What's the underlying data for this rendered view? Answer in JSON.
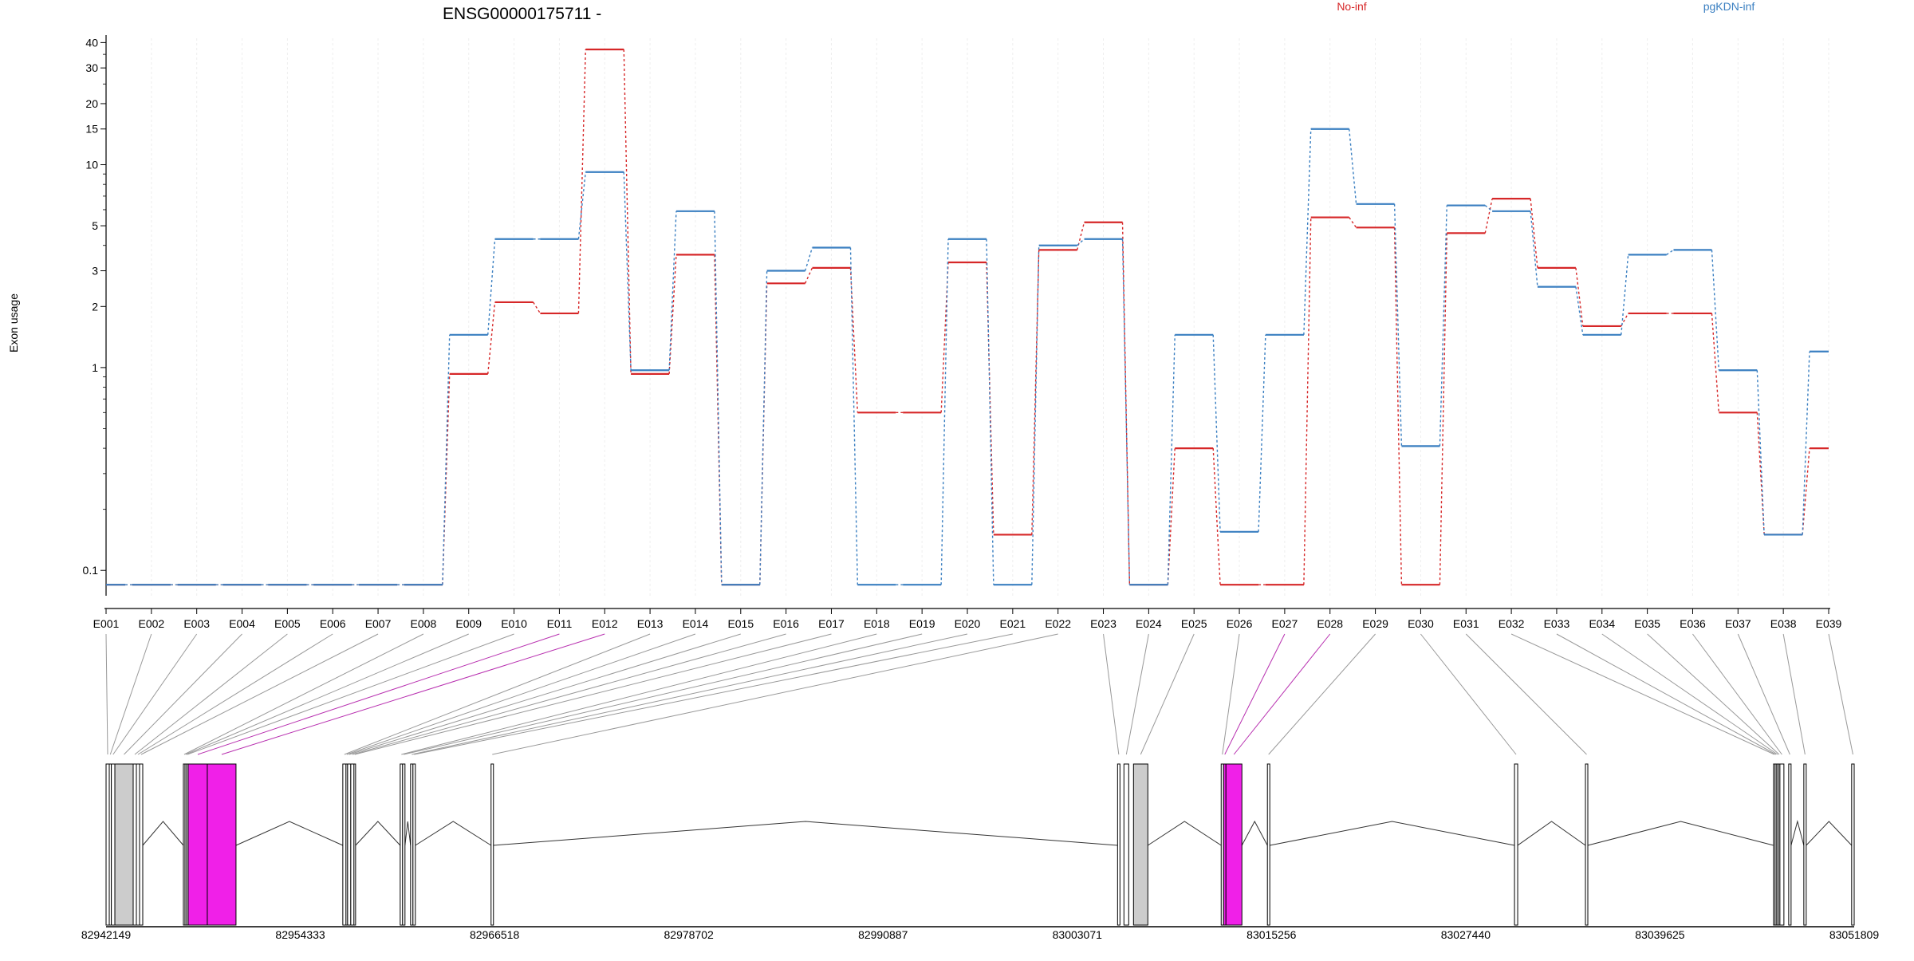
{
  "chart_data": {
    "type": "line",
    "title": "ENSG00000175711 -",
    "ylabel": "Exon usage",
    "xlabel": "",
    "yscale": "log",
    "ylim": [
      0.075,
      42
    ],
    "yticks": [
      0.1,
      1,
      2,
      3,
      5,
      10,
      15,
      20,
      30,
      40
    ],
    "grid": true,
    "legend_placement": "top",
    "categories": [
      "E001",
      "E002",
      "E003",
      "E004",
      "E005",
      "E006",
      "E007",
      "E008",
      "E009",
      "E010",
      "E011",
      "E012",
      "E013",
      "E014",
      "E015",
      "E016",
      "E017",
      "E018",
      "E019",
      "E020",
      "E021",
      "E022",
      "E023",
      "E024",
      "E025",
      "E026",
      "E027",
      "E028",
      "E029",
      "E030",
      "E031",
      "E032",
      "E033",
      "E034",
      "E035",
      "E036",
      "E037",
      "E038",
      "E039"
    ],
    "series": [
      {
        "name": "No-inf",
        "color": "#d62728",
        "values": [
          0.085,
          0.085,
          0.085,
          0.085,
          0.085,
          0.085,
          0.085,
          0.085,
          0.93,
          2.1,
          1.85,
          37,
          0.93,
          3.6,
          0.085,
          2.6,
          3.1,
          0.6,
          0.6,
          3.3,
          0.15,
          3.8,
          5.2,
          0.085,
          0.4,
          0.085,
          0.085,
          5.5,
          4.9,
          0.085,
          4.6,
          6.8,
          3.1,
          1.6,
          1.85,
          1.85,
          0.6,
          0.15,
          0.4
        ]
      },
      {
        "name": "pgKDN-inf",
        "color": "#3a7fc1",
        "values": [
          0.085,
          0.085,
          0.085,
          0.085,
          0.085,
          0.085,
          0.085,
          0.085,
          1.45,
          4.3,
          4.3,
          9.2,
          0.97,
          5.9,
          0.085,
          3.0,
          3.9,
          0.085,
          0.085,
          4.3,
          0.085,
          4.0,
          4.3,
          0.085,
          1.45,
          0.155,
          1.45,
          15,
          6.4,
          0.41,
          6.3,
          5.9,
          2.5,
          1.45,
          3.6,
          3.8,
          0.97,
          0.15,
          1.2
        ]
      }
    ],
    "gene_model": {
      "genomic_range": [
        82942149,
        83051809
      ],
      "coordinate_labels": [
        "82942149",
        "82954333",
        "82966518",
        "82978702",
        "82990887",
        "83003071",
        "83015256",
        "83027440",
        "83039625",
        "83051809"
      ],
      "highlight_color": "#f020e8",
      "exons": [
        {
          "id": "E001",
          "start": 82942149,
          "end": 82942350,
          "highlight": false
        },
        {
          "id": "E002",
          "start": 82942350,
          "end": 82942480,
          "highlight": false
        },
        {
          "id": "E003",
          "start": 82942480,
          "end": 82942700,
          "highlight": false
        },
        {
          "id": "E004",
          "start": 82942700,
          "end": 82943850,
          "highlight": false
        },
        {
          "id": "E005",
          "start": 82943850,
          "end": 82944050,
          "highlight": false
        },
        {
          "id": "E006",
          "start": 82944050,
          "end": 82944250,
          "highlight": false
        },
        {
          "id": "E007",
          "start": 82944250,
          "end": 82944450,
          "highlight": false
        },
        {
          "id": "E008",
          "start": 82947000,
          "end": 82947100,
          "highlight": false
        },
        {
          "id": "E009",
          "start": 82947100,
          "end": 82947200,
          "highlight": false
        },
        {
          "id": "E010",
          "start": 82947200,
          "end": 82947300,
          "highlight": false
        },
        {
          "id": "E011",
          "start": 82947300,
          "end": 82948500,
          "highlight": true
        },
        {
          "id": "E012",
          "start": 82948500,
          "end": 82950300,
          "highlight": true
        },
        {
          "id": "E013",
          "start": 82957000,
          "end": 82957200,
          "highlight": false
        },
        {
          "id": "E014",
          "start": 82957200,
          "end": 82957300,
          "highlight": false
        },
        {
          "id": "E015",
          "start": 82957300,
          "end": 82957500,
          "highlight": false
        },
        {
          "id": "E016",
          "start": 82957500,
          "end": 82957700,
          "highlight": false
        },
        {
          "id": "E017",
          "start": 82957700,
          "end": 82957800,
          "highlight": false
        },
        {
          "id": "E018",
          "start": 82960600,
          "end": 82960750,
          "highlight": false
        },
        {
          "id": "E019",
          "start": 82960750,
          "end": 82960900,
          "highlight": false
        },
        {
          "id": "E020",
          "start": 82961250,
          "end": 82961400,
          "highlight": false
        },
        {
          "id": "E021",
          "start": 82961400,
          "end": 82961550,
          "highlight": false
        },
        {
          "id": "E022",
          "start": 82966300,
          "end": 82966450,
          "highlight": false
        },
        {
          "id": "E023",
          "start": 83005600,
          "end": 83005750,
          "highlight": false
        },
        {
          "id": "E024",
          "start": 83006000,
          "end": 83006300,
          "highlight": false
        },
        {
          "id": "E025",
          "start": 83006600,
          "end": 83007500,
          "highlight": false
        },
        {
          "id": "E026",
          "start": 83012100,
          "end": 83012250,
          "highlight": false
        },
        {
          "id": "E027",
          "start": 83012250,
          "end": 83012400,
          "highlight": true
        },
        {
          "id": "E028",
          "start": 83012400,
          "end": 83013400,
          "highlight": true
        },
        {
          "id": "E029",
          "start": 83015000,
          "end": 83015150,
          "highlight": false
        },
        {
          "id": "E030",
          "start": 83030500,
          "end": 83030700,
          "highlight": false
        },
        {
          "id": "E031",
          "start": 83034950,
          "end": 83035100,
          "highlight": false
        },
        {
          "id": "E032",
          "start": 83046750,
          "end": 83046850,
          "highlight": false
        },
        {
          "id": "E033",
          "start": 83046850,
          "end": 83046950,
          "highlight": false
        },
        {
          "id": "E034",
          "start": 83046950,
          "end": 83047050,
          "highlight": false
        },
        {
          "id": "E035",
          "start": 83047050,
          "end": 83047150,
          "highlight": false
        },
        {
          "id": "E036",
          "start": 83047150,
          "end": 83047400,
          "highlight": false
        },
        {
          "id": "E037",
          "start": 83047700,
          "end": 83047850,
          "highlight": false
        },
        {
          "id": "E038",
          "start": 83048650,
          "end": 83048800,
          "highlight": false
        },
        {
          "id": "E039",
          "start": 83051650,
          "end": 83051809,
          "highlight": false
        }
      ]
    }
  }
}
